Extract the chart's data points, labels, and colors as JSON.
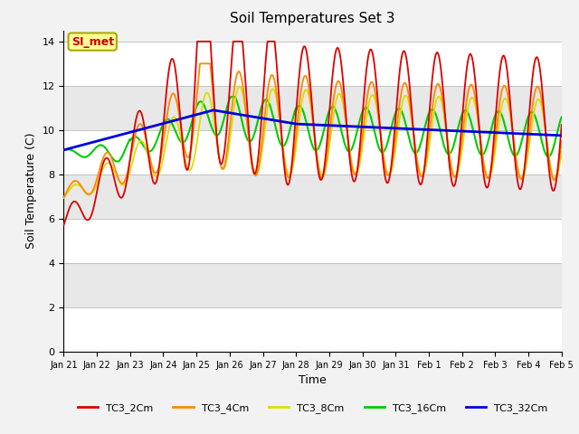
{
  "title": "Soil Temperatures Set 3",
  "xlabel": "Time",
  "ylabel": "Soil Temperature (C)",
  "ylim": [
    0,
    14.5
  ],
  "yticks": [
    0,
    2,
    4,
    6,
    8,
    10,
    12,
    14
  ],
  "annotation_label": "SI_met",
  "annotation_color": "#cc0000",
  "annotation_bg": "#ffff99",
  "annotation_border": "#aaaa00",
  "series_colors": {
    "TC3_2Cm": "#dd0000",
    "TC3_4Cm": "#ff8800",
    "TC3_8Cm": "#dddd00",
    "TC3_16Cm": "#00cc00",
    "TC3_32Cm": "#0000dd"
  },
  "xtick_labels": [
    "Jan 21",
    "Jan 22",
    "Jan 23",
    "Jan 24",
    "Jan 25",
    "Jan 26",
    "Jan 27",
    "Jan 28",
    "Jan 29",
    "Jan 30",
    "Jan 31",
    "Feb 1",
    "Feb 2",
    "Feb 3",
    "Feb 4",
    "Feb 5"
  ],
  "band_colors": [
    "#ffffff",
    "#e8e8e8",
    "#ffffff",
    "#e8e8e8",
    "#ffffff",
    "#e8e8e8",
    "#ffffff",
    "#e8e8e8"
  ]
}
